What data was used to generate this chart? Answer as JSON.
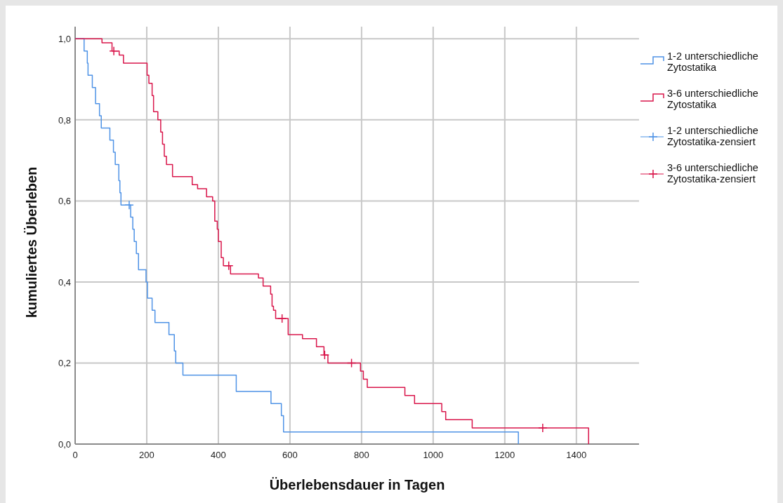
{
  "chart_data": {
    "type": "step",
    "xlabel": "Überlebensdauer in Tagen",
    "ylabel": "kumuliertes Überleben",
    "xlim": [
      0,
      1575
    ],
    "xticks": [
      0,
      200,
      400,
      600,
      800,
      1000,
      1200,
      1400
    ],
    "ylim": [
      0,
      1.03
    ],
    "yticks": [
      {
        "value": 0,
        "label": "0,0"
      },
      {
        "value": 0.2,
        "label": "0,2"
      },
      {
        "value": 0.4,
        "label": "0,4"
      },
      {
        "value": 0.6,
        "label": "0,6"
      },
      {
        "value": 0.8,
        "label": "0,8"
      },
      {
        "value": 1,
        "label": "1,0"
      }
    ],
    "grid": true,
    "legend": "right",
    "series": [
      {
        "name": "1-2 unterschiedliche Zytostatika",
        "color": "#4f93e6",
        "x": [
          0,
          25,
          34,
          36,
          48,
          57,
          68,
          73,
          97,
          107,
          112,
          122,
          125,
          128,
          155,
          161,
          165,
          171,
          177,
          198,
          202,
          215,
          223,
          262,
          277,
          281,
          301,
          450,
          547,
          576,
          582,
          1238
        ],
        "values": [
          1,
          0.97,
          0.94,
          0.91,
          0.88,
          0.84,
          0.81,
          0.78,
          0.75,
          0.72,
          0.69,
          0.65,
          0.62,
          0.59,
          0.56,
          0.53,
          0.5,
          0.47,
          0.43,
          0.4,
          0.36,
          0.33,
          0.3,
          0.27,
          0.23,
          0.2,
          0.17,
          0.13,
          0.1,
          0.07,
          0.03,
          0
        ]
      },
      {
        "name": "3-6 unterschiedliche Zytostatika",
        "color": "#d9164b",
        "x": [
          0,
          75,
          103,
          123,
          135,
          201,
          206,
          215,
          219,
          231,
          239,
          244,
          249,
          255,
          272,
          327,
          342,
          367,
          384,
          390,
          397,
          400,
          408,
          414,
          434,
          512,
          525,
          546,
          550,
          554,
          560,
          595,
          635,
          674,
          695,
          706,
          797,
          805,
          816,
          921,
          948,
          1024,
          1035,
          1109,
          1434
        ],
        "values": [
          1,
          0.99,
          0.97,
          0.96,
          0.94,
          0.91,
          0.89,
          0.86,
          0.82,
          0.8,
          0.77,
          0.74,
          0.71,
          0.69,
          0.66,
          0.64,
          0.63,
          0.61,
          0.6,
          0.55,
          0.53,
          0.5,
          0.46,
          0.44,
          0.42,
          0.41,
          0.39,
          0.37,
          0.34,
          0.33,
          0.31,
          0.27,
          0.26,
          0.24,
          0.22,
          0.2,
          0.18,
          0.16,
          0.14,
          0.12,
          0.1,
          0.08,
          0.06,
          0.04,
          0
        ]
      },
      {
        "name": "1-2 unterschiedliche Zytostatika-zensiert",
        "type": "scatter",
        "marker": "cross",
        "color": "#4f93e6",
        "x": [
          151
        ],
        "values": [
          0.59
        ]
      },
      {
        "name": "3-6 unterschiedliche Zytostatika-zensiert",
        "type": "scatter",
        "marker": "cross",
        "color": "#d9164b",
        "x": [
          108,
          429,
          578,
          697,
          772,
          1306
        ],
        "values": [
          0.97,
          0.44,
          0.31,
          0.22,
          0.2,
          0.04
        ]
      }
    ]
  }
}
